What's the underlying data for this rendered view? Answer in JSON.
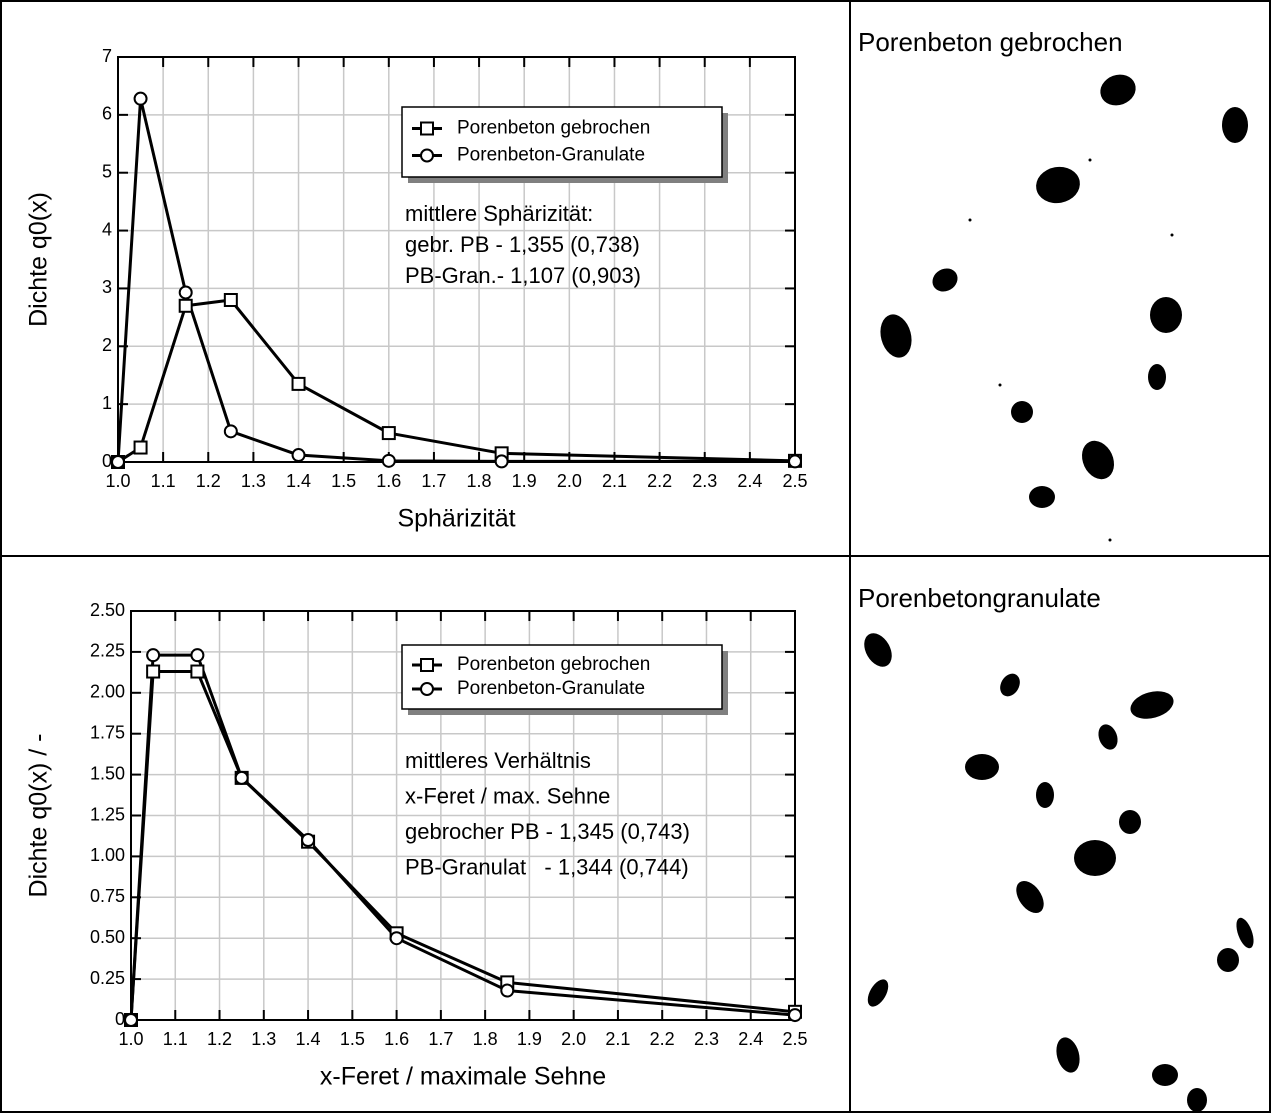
{
  "chart_data": [
    {
      "type": "line",
      "x_label": "Sphärizität",
      "y_label": "Dichte q0(x)",
      "annotation": [
        "mittlere Sphärizität:",
        "gebr. PB - 1,355 (0,738)",
        "PB-Gran.- 1,107 (0,903)"
      ],
      "x": [
        1.0,
        1.05,
        1.15,
        1.25,
        1.4,
        1.6,
        1.85,
        2.5
      ],
      "series": [
        {
          "name": "Porenbeton gebrochen",
          "color": "#000000",
          "marker": "square",
          "values": [
            0,
            0.25,
            2.7,
            2.8,
            1.35,
            0.5,
            0.15,
            0.02
          ]
        },
        {
          "name": "Porenbeton-Granulate",
          "color": "#000000",
          "marker": "circle",
          "values": [
            0,
            6.28,
            2.93,
            0.53,
            0.12,
            0.02,
            0.01,
            0.01
          ]
        }
      ],
      "xlim": [
        1.0,
        2.5
      ],
      "xticks": [
        {
          "value": 1,
          "label": "1.0"
        },
        1.1,
        1.2,
        1.3,
        1.4,
        1.5,
        1.6,
        1.7,
        1.8,
        1.9,
        {
          "value": 2,
          "label": "2.0"
        },
        2.1,
        2.2,
        2.3,
        2.4,
        2.5
      ],
      "ylim": [
        0,
        7
      ],
      "yticks": [
        0,
        1,
        2,
        3,
        4,
        5,
        6,
        7
      ],
      "grid": true,
      "legend": "upper right"
    },
    {
      "type": "line",
      "x_label": "x-Feret / maximale Sehne",
      "y_label": "Dichte q0(x) / -",
      "annotation": [
        "mittleres Verhältnis",
        "x-Feret / max. Sehne",
        "gebrocher PB - 1,345 (0,743)",
        "PB-Granulat   - 1,344 (0,744)"
      ],
      "x": [
        1.0,
        1.05,
        1.15,
        1.25,
        1.4,
        1.6,
        1.85,
        2.5
      ],
      "series": [
        {
          "name": "Porenbeton gebrochen",
          "color": "#000000",
          "marker": "square",
          "values": [
            0,
            2.13,
            2.13,
            1.48,
            1.09,
            0.53,
            0.23,
            0.05
          ]
        },
        {
          "name": "Porenbeton-Granulate",
          "color": "#000000",
          "marker": "circle",
          "values": [
            0,
            2.23,
            2.23,
            1.48,
            1.1,
            0.5,
            0.18,
            0.03
          ]
        }
      ],
      "xlim": [
        1.0,
        2.5
      ],
      "xticks": [
        {
          "value": 1,
          "label": "1.0"
        },
        1.1,
        1.2,
        1.3,
        1.4,
        1.5,
        1.6,
        1.7,
        1.8,
        1.9,
        {
          "value": 2,
          "label": "2.0"
        },
        2.1,
        2.2,
        2.3,
        2.4,
        2.5
      ],
      "ylim": [
        0,
        2.5
      ],
      "yticks": [
        0,
        0.25,
        {
          "value": 0.5,
          "label": "0.50"
        },
        0.75,
        {
          "value": 1,
          "label": "1.00"
        },
        1.25,
        {
          "value": 1.5,
          "label": "1.50"
        },
        1.75,
        {
          "value": 2,
          "label": "2.00"
        },
        2.25,
        {
          "value": 2.5,
          "label": "2.50"
        }
      ],
      "grid": true,
      "legend": "upper right"
    }
  ],
  "panels": [
    {
      "title": "Porenbeton gebrochen"
    },
    {
      "title": "Porenbetongranulate"
    }
  ]
}
